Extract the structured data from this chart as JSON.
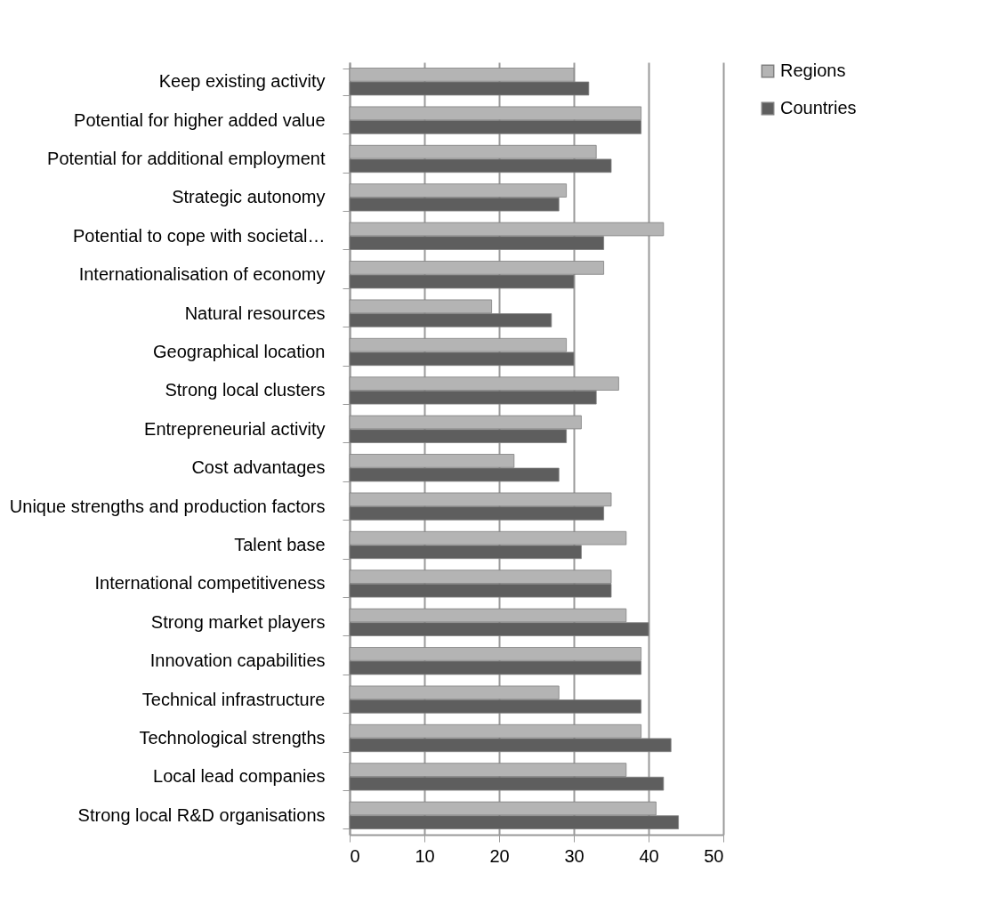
{
  "chart_data": {
    "type": "bar",
    "orientation": "horizontal",
    "categories": [
      "Keep existing activity",
      "Potential for higher added value",
      "Potential for additional employment",
      "Strategic autonomy",
      "Potential to cope with societal…",
      "Internationalisation of economy",
      "Natural resources",
      "Geographical location",
      "Strong local clusters",
      "Entrepreneurial activity",
      "Cost advantages",
      "Unique strengths and production factors",
      "Talent base",
      "International competitiveness",
      "Strong market players",
      "Innovation capabilities",
      "Technical infrastructure",
      "Technological strengths",
      "Local lead companies",
      "Strong local R&D organisations"
    ],
    "series": [
      {
        "name": "Regions",
        "color": "#b4b4b4",
        "values": [
          30,
          39,
          33,
          29,
          42,
          34,
          19,
          29,
          36,
          31,
          22,
          35,
          37,
          35,
          37,
          39,
          28,
          39,
          37,
          41
        ]
      },
      {
        "name": "Countries",
        "color": "#5e5e5e",
        "values": [
          32,
          39,
          35,
          28,
          34,
          30,
          27,
          30,
          33,
          29,
          28,
          34,
          31,
          35,
          40,
          39,
          39,
          43,
          42,
          44
        ]
      }
    ],
    "xlim": [
      0,
      50
    ],
    "xticks": [
      0,
      10,
      20,
      30,
      40,
      50
    ],
    "grid": "x",
    "legend": "right"
  }
}
